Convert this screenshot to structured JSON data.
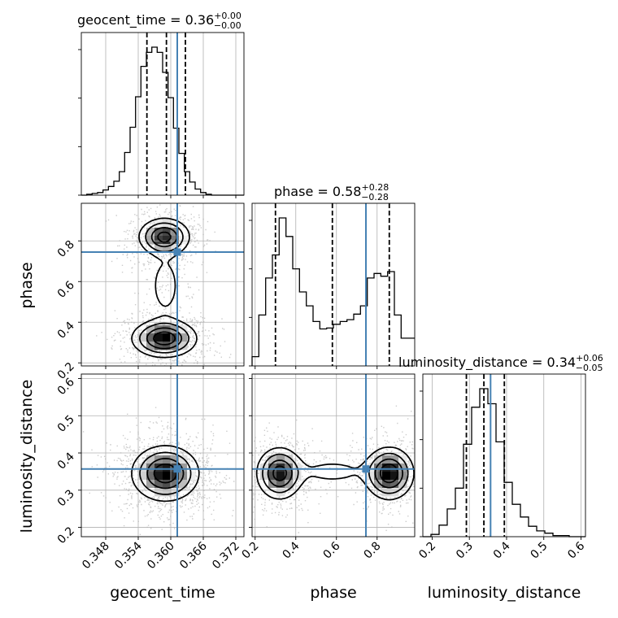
{
  "chart_data": {
    "type": "corner",
    "parameters": [
      "geocent_time",
      "phase",
      "luminosity_distance"
    ],
    "axis_labels": [
      "geocent_time",
      "phase",
      "luminosity_distance"
    ],
    "truths": [
      0.3612,
      0.745,
      0.357
    ],
    "truth_color": "#4682b4",
    "hist_color": "#000000",
    "ranges": [
      [
        0.3435,
        0.3735
      ],
      [
        0.185,
        0.985
      ],
      [
        0.175,
        0.612
      ]
    ],
    "ticks": {
      "geocent_time": {
        "values": [
          0.348,
          0.354,
          0.36,
          0.366,
          0.372
        ],
        "labels": [
          "0.348",
          "0.354",
          "0.360",
          "0.366",
          "0.372"
        ]
      },
      "phase": {
        "values": [
          0.2,
          0.4,
          0.6,
          0.8
        ],
        "labels": [
          "0.2",
          "0.4",
          "0.6",
          "0.8"
        ]
      },
      "luminosity_distance": {
        "values": [
          0.2,
          0.3,
          0.4,
          0.5,
          0.6
        ],
        "labels": [
          "0.2",
          "0.3",
          "0.4",
          "0.5",
          "0.6"
        ]
      }
    },
    "titles": [
      {
        "prefix": "geocent_time = 0.36",
        "sup": "+0.00",
        "sub": "−0.00"
      },
      {
        "prefix": "phase = 0.58",
        "sup": "+0.28",
        "sub": "−0.28"
      },
      {
        "prefix": "luminosity_distance = 0.34",
        "sup": "+0.06",
        "sub": "−0.05"
      }
    ],
    "quantiles": {
      "geocent_time": [
        0.3556,
        0.3592,
        0.3627
      ],
      "phase": [
        0.3,
        0.58,
        0.86
      ],
      "luminosity_distance": [
        0.292,
        0.339,
        0.394
      ]
    },
    "histograms": {
      "geocent_time": {
        "range": [
          0.3435,
          0.3735
        ],
        "counts": [
          0,
          1,
          2,
          3,
          6,
          10,
          16,
          27,
          49,
          78,
          113,
          148,
          164,
          170,
          164,
          141,
          112,
          77,
          48,
          27,
          15,
          7,
          3,
          1,
          0,
          0,
          0,
          0,
          0,
          0
        ]
      },
      "phase": {
        "range": [
          0.185,
          0.985
        ],
        "counts": [
          10,
          55,
          95,
          120,
          160,
          140,
          105,
          80,
          65,
          48,
          40,
          41,
          45,
          48,
          50,
          56,
          65,
          95,
          100,
          97,
          102,
          55,
          30,
          30
        ]
      },
      "luminosity_distance": {
        "range": [
          0.175,
          0.612
        ],
        "counts": [
          0,
          2,
          10,
          24,
          42,
          80,
          112,
          128,
          115,
          82,
          47,
          28,
          17,
          9,
          5,
          3,
          1,
          1,
          0,
          0
        ]
      }
    },
    "density_2d": [
      {
        "x": "geocent_time",
        "y": "phase",
        "blobs": [
          {
            "cx": 0.3588,
            "cy": 0.82,
            "sx": 0.0023,
            "sy": 0.045,
            "w": 0.9
          },
          {
            "cx": 0.3588,
            "cy": 0.32,
            "sx": 0.0029,
            "sy": 0.045,
            "w": 1.0
          },
          {
            "cx": 0.359,
            "cy": 0.58,
            "sx": 0.002,
            "sy": 0.11,
            "w": 0.18
          }
        ]
      },
      {
        "x": "geocent_time",
        "y": "luminosity_distance",
        "blobs": [
          {
            "cx": 0.359,
            "cy": 0.345,
            "sx": 0.003,
            "sy": 0.036,
            "w": 1.0
          }
        ]
      },
      {
        "x": "phase",
        "y": "luminosity_distance",
        "blobs": [
          {
            "cx": 0.32,
            "cy": 0.345,
            "sx": 0.055,
            "sy": 0.034,
            "w": 0.9
          },
          {
            "cx": 0.86,
            "cy": 0.345,
            "sx": 0.058,
            "sy": 0.034,
            "w": 1.0
          },
          {
            "cx": 0.58,
            "cy": 0.35,
            "sx": 0.13,
            "sy": 0.025,
            "w": 0.16
          }
        ]
      }
    ],
    "contour_levels": [
      0.12,
      0.3,
      0.55,
      0.8
    ],
    "grid": true
  }
}
